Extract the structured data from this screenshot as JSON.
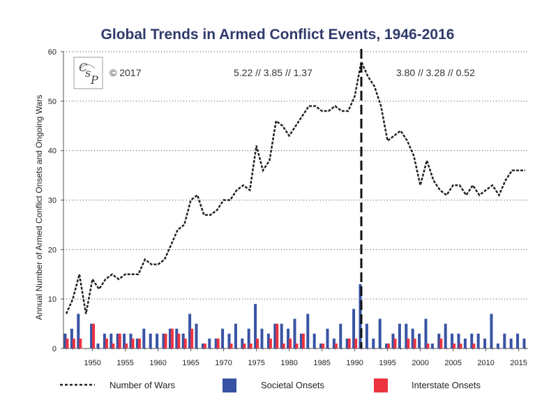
{
  "chart_data": {
    "type": "bar",
    "title": "Global Trends in Armed Conflict Events, 1946-2016",
    "ylabel": "Annual Number of Armed Conflict Onsets and Ongoing Wars",
    "xlabel": "",
    "ylim": [
      0,
      60
    ],
    "xlim": [
      1946,
      2016
    ],
    "y_ticks": [
      "0",
      "10",
      "20",
      "30",
      "40",
      "50",
      "60"
    ],
    "x_ticks": [
      "1950",
      "1955",
      "1960",
      "1965",
      "1970",
      "1975",
      "1980",
      "1985",
      "1990",
      "1995",
      "2000",
      "2005",
      "2010",
      "2015"
    ],
    "grid": "horizontal dotted",
    "legend_position": "bottom",
    "years": [
      1946,
      1947,
      1948,
      1949,
      1950,
      1951,
      1952,
      1953,
      1954,
      1955,
      1956,
      1957,
      1958,
      1959,
      1960,
      1961,
      1962,
      1963,
      1964,
      1965,
      1966,
      1967,
      1968,
      1969,
      1970,
      1971,
      1972,
      1973,
      1974,
      1975,
      1976,
      1977,
      1978,
      1979,
      1980,
      1981,
      1982,
      1983,
      1984,
      1985,
      1986,
      1987,
      1988,
      1989,
      1990,
      1991,
      1992,
      1993,
      1994,
      1995,
      1996,
      1997,
      1998,
      1999,
      2000,
      2001,
      2002,
      2003,
      2004,
      2005,
      2006,
      2007,
      2008,
      2009,
      2010,
      2011,
      2012,
      2013,
      2014,
      2015,
      2016
    ],
    "series": [
      {
        "name": "Number of Wars",
        "style": "dotted-line",
        "color": "#222222",
        "values": [
          7,
          10,
          15,
          7,
          14,
          12,
          14,
          15,
          14,
          15,
          15,
          15,
          18,
          17,
          17,
          18,
          21,
          24,
          25,
          30,
          31,
          27,
          27,
          28,
          30,
          30,
          32,
          33,
          32,
          41,
          36,
          38,
          46,
          45,
          43,
          45,
          47,
          49,
          49,
          48,
          48,
          49,
          48,
          48,
          51,
          58,
          55,
          53,
          49,
          42,
          43,
          44,
          42,
          39,
          33,
          38,
          34,
          32,
          31,
          33,
          33,
          31,
          33,
          31,
          32,
          33,
          31,
          34,
          36,
          36,
          36
        ]
      },
      {
        "name": "Societal Onsets",
        "style": "bar",
        "color": "#3853a4",
        "values": [
          3,
          4,
          7,
          0,
          5,
          1,
          3,
          3,
          3,
          3,
          3,
          2,
          4,
          3,
          3,
          3,
          4,
          4,
          3,
          7,
          5,
          1,
          2,
          2,
          4,
          3,
          5,
          2,
          4,
          9,
          4,
          3,
          5,
          5,
          4,
          6,
          3,
          7,
          3,
          1,
          4,
          2,
          5,
          2,
          8,
          13,
          5,
          2,
          6,
          1,
          3,
          5,
          5,
          4,
          3,
          6,
          1,
          3,
          5,
          3,
          3,
          2,
          3,
          3,
          2,
          7,
          1,
          3,
          2,
          3,
          2
        ]
      },
      {
        "name": "Interstate Onsets",
        "style": "bar",
        "color": "#ec3340",
        "values": [
          2,
          2,
          2,
          0,
          5,
          0,
          2,
          1,
          3,
          1,
          2,
          2,
          0,
          0,
          0,
          3,
          4,
          3,
          2,
          4,
          0,
          1,
          0,
          2,
          0,
          1,
          0,
          1,
          1,
          2,
          0,
          2,
          5,
          1,
          2,
          1,
          3,
          0,
          0,
          1,
          0,
          1,
          0,
          2,
          2,
          0,
          0,
          0,
          0,
          1,
          2,
          0,
          2,
          2,
          0,
          1,
          0,
          2,
          0,
          1,
          1,
          0,
          1,
          0,
          0,
          0,
          0,
          0,
          0,
          0,
          0
        ]
      }
    ],
    "reference_line": {
      "year": 1991,
      "style": "dashed"
    },
    "annotations": {
      "copyright": "© 2017",
      "left_stats": "5.22 // 3.85 // 1.37",
      "right_stats": "3.80 // 3.28 // 0.52"
    },
    "logo_text": "CSP"
  }
}
